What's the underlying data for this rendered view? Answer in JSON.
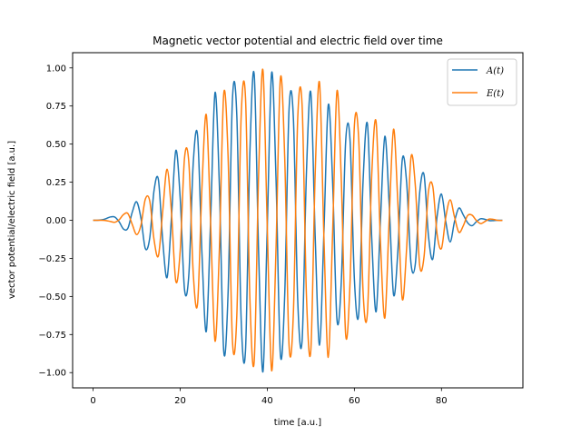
{
  "chart_data": {
    "type": "line",
    "title": "Magnetic vector potential and electric field over time",
    "xlabel": "time [a.u.]",
    "ylabel": "vector potential/electric field [a.u.]",
    "xlim": [
      -4.7,
      98.7
    ],
    "ylim": [
      -1.1,
      1.1
    ],
    "xticks": [
      0,
      20,
      40,
      60,
      80
    ],
    "yticks": [
      -1.0,
      -0.75,
      -0.5,
      -0.25,
      0.0,
      0.25,
      0.5,
      0.75,
      1.0
    ],
    "xtick_labels": [
      "0",
      "20",
      "40",
      "60",
      "80"
    ],
    "ytick_labels": [
      "−1.00",
      "−0.75",
      "−0.50",
      "−0.25",
      "0.00",
      "0.25",
      "0.50",
      "0.75",
      "1.00"
    ],
    "grid": false,
    "legend": "top-right",
    "series": [
      {
        "name": "A(t)",
        "color": "#1f77b4",
        "x": [
          0,
          1,
          2,
          3,
          4,
          5,
          6,
          7,
          8,
          9,
          10,
          11,
          12,
          13,
          14,
          15,
          16,
          17,
          18,
          19,
          20,
          21,
          22,
          23,
          24,
          25,
          26,
          27,
          28,
          29,
          30,
          31,
          32,
          33,
          34,
          35,
          36,
          37,
          38,
          39,
          40,
          41,
          42,
          43,
          44,
          45,
          46,
          47,
          48,
          49,
          50,
          51,
          52,
          53,
          54,
          55,
          56,
          57,
          58,
          59,
          60,
          61,
          62,
          63,
          64,
          65,
          66,
          67,
          68,
          69,
          70,
          71,
          72,
          73,
          74,
          75,
          76,
          77,
          78,
          79,
          80,
          81,
          82,
          83,
          84,
          85,
          86,
          87,
          88,
          89,
          90,
          91,
          92,
          93,
          94
        ],
        "y": [
          0.0,
          0.0,
          0.003,
          0.011,
          0.022,
          0.021,
          -0.011,
          -0.058,
          -0.052,
          0.054,
          0.121,
          0.012,
          -0.186,
          -0.118,
          0.196,
          0.266,
          -0.138,
          -0.375,
          0.019,
          0.458,
          0.146,
          -0.456,
          -0.351,
          0.376,
          0.555,
          -0.219,
          -0.729,
          0.012,
          0.838,
          0.225,
          -0.86,
          -0.474,
          0.795,
          0.691,
          -0.65,
          -0.853,
          0.438,
          0.956,
          -0.2,
          -0.995,
          -0.045,
          0.969,
          0.281,
          -0.878,
          -0.494,
          0.728,
          0.667,
          -0.532,
          -0.788,
          0.318,
          0.838,
          -0.107,
          -0.82,
          -0.085,
          0.756,
          0.255,
          -0.651,
          -0.403,
          0.518,
          0.529,
          -0.386,
          -0.614,
          0.258,
          0.632,
          -0.127,
          -0.6,
          0.009,
          0.551,
          0.101,
          -0.489,
          -0.195,
          0.398,
          0.249,
          -0.283,
          -0.286,
          0.181,
          0.298,
          -0.098,
          -0.255,
          0.027,
          0.172,
          -0.012,
          -0.142,
          -0.008,
          0.08,
          0.036,
          -0.016,
          -0.036,
          -0.01,
          0.01,
          0.006,
          -0.002,
          -0.002,
          0.0,
          0.0
        ]
      },
      {
        "name": "E(t)",
        "color": "#ff7f0e",
        "x": [
          0,
          1,
          2,
          3,
          4,
          5,
          6,
          7,
          8,
          9,
          10,
          11,
          12,
          13,
          14,
          15,
          16,
          17,
          18,
          19,
          20,
          21,
          22,
          23,
          24,
          25,
          26,
          27,
          28,
          29,
          30,
          31,
          32,
          33,
          34,
          35,
          36,
          37,
          38,
          39,
          40,
          41,
          42,
          43,
          44,
          45,
          46,
          47,
          48,
          49,
          50,
          51,
          52,
          53,
          54,
          55,
          56,
          57,
          58,
          59,
          60,
          61,
          62,
          63,
          64,
          65,
          66,
          67,
          68,
          69,
          70,
          71,
          72,
          73,
          74,
          75,
          76,
          77,
          78,
          79,
          80,
          81,
          82,
          83,
          84,
          85,
          86,
          87,
          88,
          89,
          90,
          91,
          92,
          93,
          94
        ],
        "y": [
          0.0,
          0.0,
          0.0,
          -0.002,
          -0.008,
          -0.013,
          0.004,
          0.038,
          0.044,
          -0.028,
          -0.094,
          -0.031,
          0.139,
          0.128,
          -0.128,
          -0.233,
          0.064,
          0.335,
          0.051,
          -0.401,
          -0.201,
          0.41,
          0.373,
          -0.348,
          -0.545,
          0.218,
          0.692,
          -0.031,
          -0.793,
          -0.19,
          0.83,
          0.418,
          -0.792,
          -0.628,
          0.681,
          0.803,
          -0.508,
          -0.925,
          0.289,
          0.987,
          -0.048,
          -0.987,
          -0.193,
          0.929,
          0.416,
          -0.822,
          -0.606,
          0.675,
          0.753,
          -0.499,
          -0.854,
          0.306,
          0.903,
          -0.106,
          -0.9,
          -0.086,
          0.847,
          0.262,
          -0.751,
          -0.412,
          0.62,
          0.529,
          -0.468,
          -0.607,
          0.307,
          0.644,
          -0.151,
          -0.641,
          0.012,
          0.598,
          0.102,
          -0.517,
          -0.183,
          0.413,
          0.226,
          -0.297,
          -0.239,
          0.186,
          0.223,
          -0.092,
          -0.185,
          0.021,
          0.134,
          0.021,
          -0.079,
          -0.037,
          0.031,
          0.034,
          -0.001,
          -0.022,
          -0.008,
          0.008,
          0.005,
          -0.001,
          -0.001
        ]
      }
    ]
  }
}
